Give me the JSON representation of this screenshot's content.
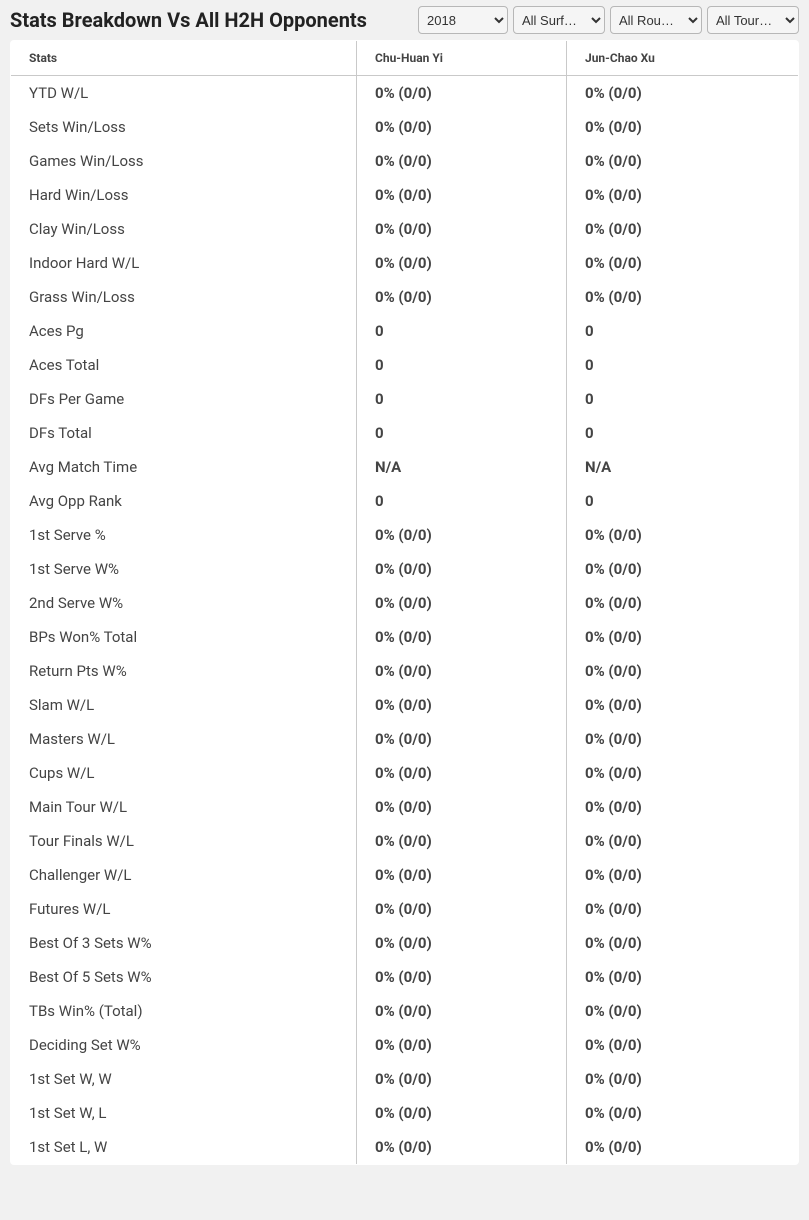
{
  "header": {
    "title": "Stats Breakdown Vs All H2H Opponents",
    "filters": {
      "year": {
        "value": "2018"
      },
      "surface": {
        "value": "All Surf…"
      },
      "round": {
        "value": "All Rou…"
      },
      "tour": {
        "value": "All Tour…"
      }
    }
  },
  "table": {
    "columns": {
      "stats": "Stats",
      "player1": "Chu-Huan Yi",
      "player2": "Jun-Chao Xu"
    },
    "rows": [
      {
        "stat": "YTD W/L",
        "p1": "0% (0/0)",
        "p2": "0% (0/0)"
      },
      {
        "stat": "Sets Win/Loss",
        "p1": "0% (0/0)",
        "p2": "0% (0/0)"
      },
      {
        "stat": "Games Win/Loss",
        "p1": "0% (0/0)",
        "p2": "0% (0/0)"
      },
      {
        "stat": "Hard Win/Loss",
        "p1": "0% (0/0)",
        "p2": "0% (0/0)"
      },
      {
        "stat": "Clay Win/Loss",
        "p1": "0% (0/0)",
        "p2": "0% (0/0)"
      },
      {
        "stat": "Indoor Hard W/L",
        "p1": "0% (0/0)",
        "p2": "0% (0/0)"
      },
      {
        "stat": "Grass Win/Loss",
        "p1": "0% (0/0)",
        "p2": "0% (0/0)"
      },
      {
        "stat": "Aces Pg",
        "p1": "0",
        "p2": "0"
      },
      {
        "stat": "Aces Total",
        "p1": "0",
        "p2": "0"
      },
      {
        "stat": "DFs Per Game",
        "p1": "0",
        "p2": "0"
      },
      {
        "stat": "DFs Total",
        "p1": "0",
        "p2": "0"
      },
      {
        "stat": "Avg Match Time",
        "p1": "N/A",
        "p2": "N/A"
      },
      {
        "stat": "Avg Opp Rank",
        "p1": "0",
        "p2": "0"
      },
      {
        "stat": "1st Serve %",
        "p1": "0% (0/0)",
        "p2": "0% (0/0)"
      },
      {
        "stat": "1st Serve W%",
        "p1": "0% (0/0)",
        "p2": "0% (0/0)"
      },
      {
        "stat": "2nd Serve W%",
        "p1": "0% (0/0)",
        "p2": "0% (0/0)"
      },
      {
        "stat": "BPs Won% Total",
        "p1": "0% (0/0)",
        "p2": "0% (0/0)"
      },
      {
        "stat": "Return Pts W%",
        "p1": "0% (0/0)",
        "p2": "0% (0/0)"
      },
      {
        "stat": "Slam W/L",
        "p1": "0% (0/0)",
        "p2": "0% (0/0)"
      },
      {
        "stat": "Masters W/L",
        "p1": "0% (0/0)",
        "p2": "0% (0/0)"
      },
      {
        "stat": "Cups W/L",
        "p1": "0% (0/0)",
        "p2": "0% (0/0)"
      },
      {
        "stat": "Main Tour W/L",
        "p1": "0% (0/0)",
        "p2": "0% (0/0)"
      },
      {
        "stat": "Tour Finals W/L",
        "p1": "0% (0/0)",
        "p2": "0% (0/0)"
      },
      {
        "stat": "Challenger W/L",
        "p1": "0% (0/0)",
        "p2": "0% (0/0)"
      },
      {
        "stat": "Futures W/L",
        "p1": "0% (0/0)",
        "p2": "0% (0/0)"
      },
      {
        "stat": "Best Of 3 Sets W%",
        "p1": "0% (0/0)",
        "p2": "0% (0/0)"
      },
      {
        "stat": "Best Of 5 Sets W%",
        "p1": "0% (0/0)",
        "p2": "0% (0/0)"
      },
      {
        "stat": "TBs Win% (Total)",
        "p1": "0% (0/0)",
        "p2": "0% (0/0)"
      },
      {
        "stat": "Deciding Set W%",
        "p1": "0% (0/0)",
        "p2": "0% (0/0)"
      },
      {
        "stat": "1st Set W, W",
        "p1": "0% (0/0)",
        "p2": "0% (0/0)"
      },
      {
        "stat": "1st Set W, L",
        "p1": "0% (0/0)",
        "p2": "0% (0/0)"
      },
      {
        "stat": "1st Set L, W",
        "p1": "0% (0/0)",
        "p2": "0% (0/0)"
      }
    ]
  }
}
